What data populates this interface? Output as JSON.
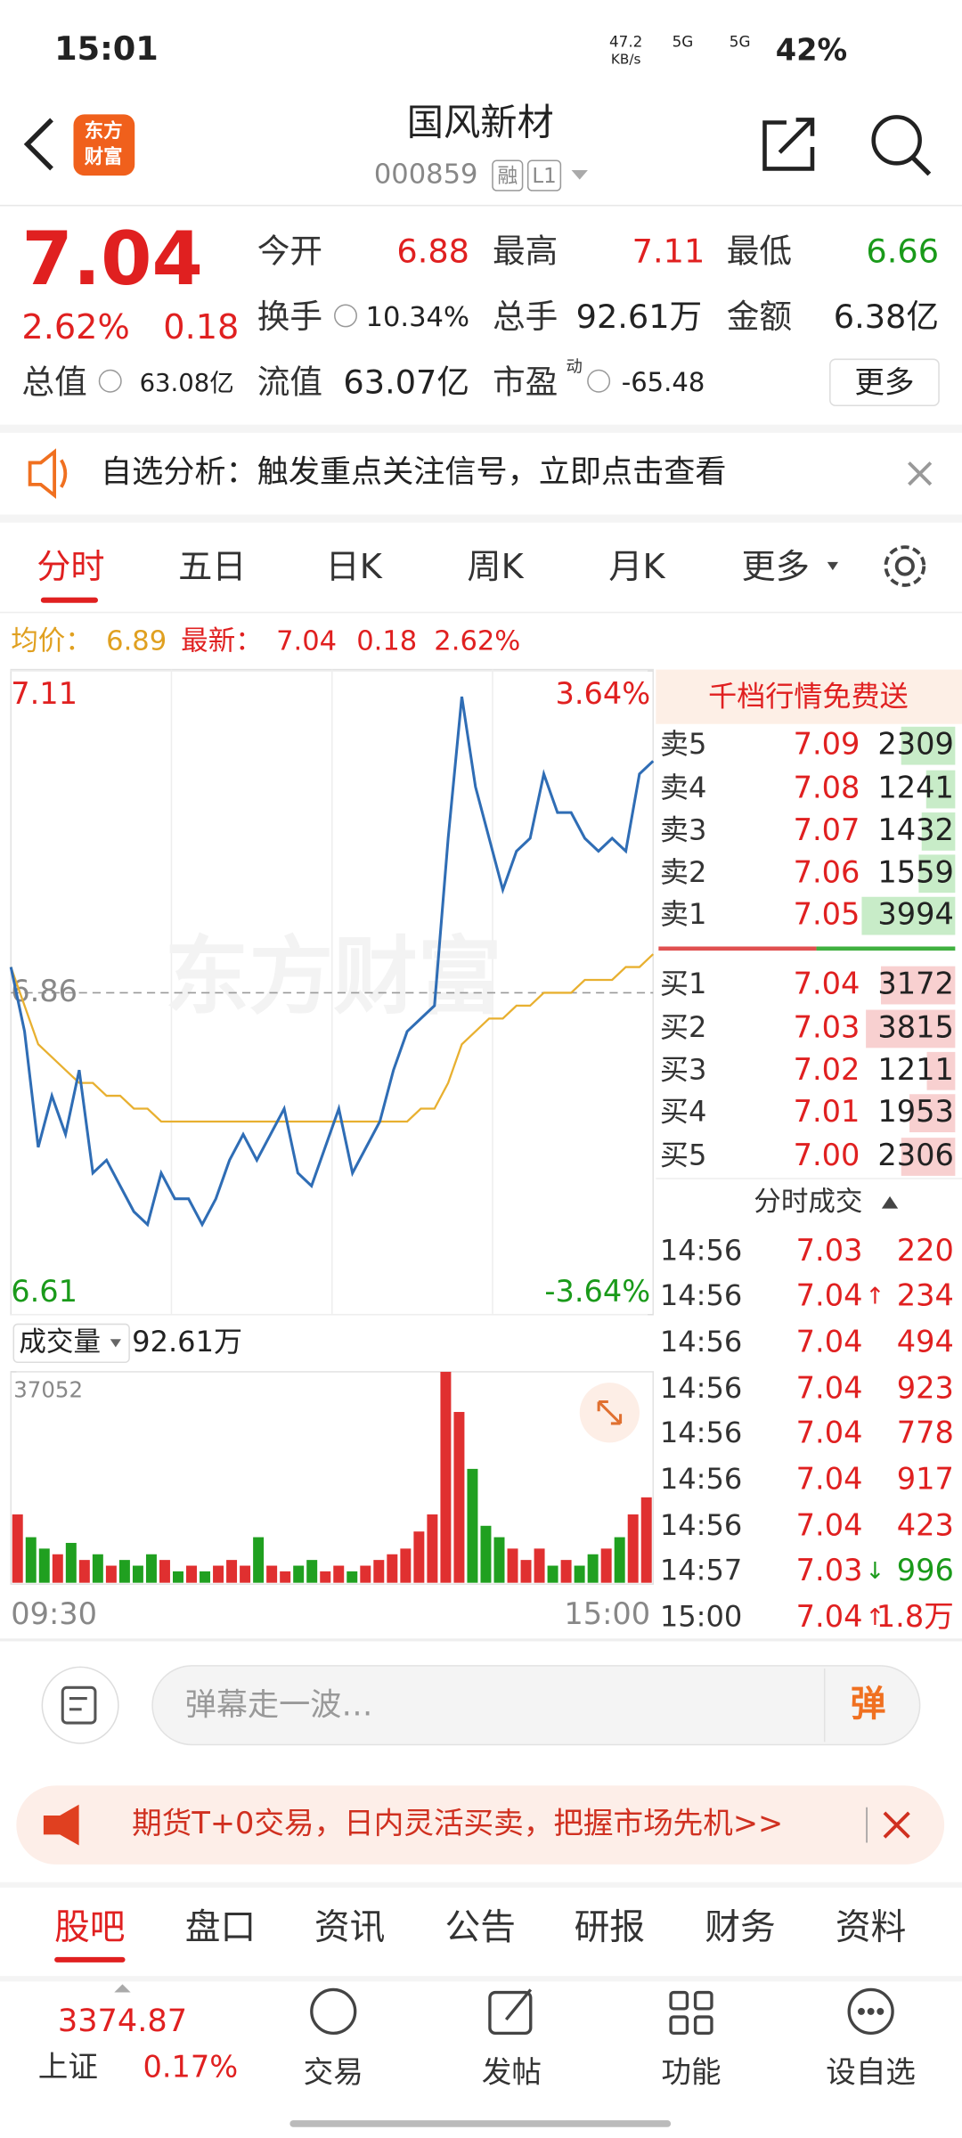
{
  "status_bar": {
    "time": "15:01",
    "speed": "47.2",
    "speed_unit": "KB/s",
    "net1": "5G",
    "net2": "5G",
    "battery": "42%"
  },
  "header": {
    "logo": [
      "东方",
      "财富"
    ],
    "name": "国风新材",
    "code": "000859",
    "tags": [
      "融",
      "L1"
    ]
  },
  "quote": {
    "price": "7.04",
    "change_pct": "2.62%",
    "change": "0.18",
    "fields": [
      {
        "label": "今开",
        "value": "6.88"
      },
      {
        "label": "最高",
        "value": "7.11"
      },
      {
        "label": "最低",
        "value": "6.66"
      },
      {
        "label": "换手",
        "value": "10.34%"
      },
      {
        "label": "总手",
        "value": "92.61万"
      },
      {
        "label": "金额",
        "value": "6.38亿"
      },
      {
        "label": "总值",
        "value": "63.08亿"
      },
      {
        "label": "流值",
        "value": "63.07亿"
      },
      {
        "label": "市盈",
        "sup": "动",
        "value": "-65.48"
      }
    ],
    "more": "更多"
  },
  "notice": {
    "text": "自选分析：触发重点关注信号，立即点击查看"
  },
  "period_tabs": [
    "分时",
    "五日",
    "日K",
    "周K",
    "月K",
    "更多"
  ],
  "summary": {
    "avg_label": "均价：",
    "avg": "6.89",
    "last_label": "最新：",
    "last": "7.04",
    "change": "0.18",
    "change_pct": "2.62%"
  },
  "chart_data": [
    {
      "type": "line",
      "watermark": "东方财富",
      "categories": [
        "09:30",
        null,
        null,
        null,
        null,
        null,
        null,
        null,
        null,
        null,
        null,
        null,
        null,
        null,
        null,
        null,
        null,
        null,
        null,
        null,
        null,
        null,
        null,
        null,
        null,
        null,
        null,
        null,
        null,
        null,
        null,
        null,
        null,
        null,
        null,
        null,
        null,
        null,
        null,
        null,
        null,
        null,
        null,
        null,
        null,
        null,
        null,
        "15:00"
      ],
      "series": [
        {
          "color": "#2f6db5",
          "values": [
            6.88,
            6.83,
            6.74,
            6.78,
            6.75,
            6.8,
            6.72,
            6.73,
            6.71,
            6.69,
            6.68,
            6.72,
            6.7,
            6.7,
            6.68,
            6.7,
            6.73,
            6.75,
            6.73,
            6.75,
            6.77,
            6.72,
            6.71,
            6.74,
            6.77,
            6.72,
            6.74,
            6.76,
            6.8,
            6.83,
            6.84,
            6.85,
            6.98,
            7.09,
            7.02,
            6.98,
            6.94,
            6.97,
            6.98,
            7.03,
            7.0,
            7.0,
            6.98,
            6.97,
            6.98,
            6.97,
            7.03,
            7.04
          ]
        },
        {
          "color": "#e8b030",
          "values": [
            6.88,
            6.85,
            6.82,
            6.81,
            6.8,
            6.79,
            6.79,
            6.78,
            6.78,
            6.77,
            6.77,
            6.76,
            6.76,
            6.76,
            6.76,
            6.76,
            6.76,
            6.76,
            6.76,
            6.76,
            6.76,
            6.76,
            6.76,
            6.76,
            6.76,
            6.76,
            6.76,
            6.76,
            6.76,
            6.76,
            6.77,
            6.77,
            6.79,
            6.82,
            6.83,
            6.84,
            6.84,
            6.85,
            6.85,
            6.86,
            6.86,
            6.86,
            6.87,
            6.87,
            6.87,
            6.88,
            6.88,
            6.89
          ]
        }
      ],
      "ylim": [
        6.61,
        7.11
      ],
      "yticks": [
        6.61,
        6.86,
        7.11
      ],
      "y2lim": [
        -3.64,
        3.64
      ],
      "y2ticks": [
        {
          "value": -3.64,
          "label": "-3.64%"
        },
        {
          "value": 3.64,
          "label": "3.64%"
        }
      ]
    },
    {
      "type": "bar",
      "title": "成交量",
      "total": "92.61万",
      "categories": [
        "09:30",
        null,
        null,
        null,
        null,
        null,
        null,
        null,
        null,
        null,
        null,
        null,
        null,
        null,
        null,
        null,
        null,
        null,
        null,
        null,
        null,
        null,
        null,
        null,
        null,
        null,
        null,
        null,
        null,
        null,
        null,
        null,
        null,
        null,
        null,
        null,
        null,
        null,
        null,
        null,
        null,
        null,
        null,
        null,
        null,
        null,
        null,
        "15:00"
      ],
      "values": [
        12000,
        8000,
        6000,
        5000,
        7000,
        4000,
        5000,
        3000,
        4000,
        3000,
        5000,
        4000,
        2000,
        3000,
        2000,
        3000,
        4000,
        3000,
        8000,
        3000,
        2000,
        3000,
        4000,
        2000,
        3000,
        2000,
        3000,
        4000,
        5000,
        6000,
        9000,
        12000,
        37052,
        30000,
        20000,
        10000,
        8000,
        6000,
        4000,
        6000,
        3000,
        4000,
        3000,
        5000,
        6000,
        8000,
        12000,
        15000
      ],
      "ylim": [
        0,
        37052
      ],
      "yticks": [
        37052
      ]
    }
  ],
  "order_book": {
    "banner": "千档行情免费送",
    "asks": [
      {
        "label": "卖5",
        "price": "7.09",
        "volume": 2309
      },
      {
        "label": "卖4",
        "price": "7.08",
        "volume": 1241
      },
      {
        "label": "卖3",
        "price": "7.07",
        "volume": 1432
      },
      {
        "label": "卖2",
        "price": "7.06",
        "volume": 1559
      },
      {
        "label": "卖1",
        "price": "7.05",
        "volume": 3994
      }
    ],
    "bids": [
      {
        "label": "买1",
        "price": "7.04",
        "volume": 3172
      },
      {
        "label": "买2",
        "price": "7.03",
        "volume": 3815
      },
      {
        "label": "买3",
        "price": "7.02",
        "volume": 1211
      },
      {
        "label": "买4",
        "price": "7.01",
        "volume": 1953
      },
      {
        "label": "买5",
        "price": "7.00",
        "volume": 2306
      }
    ]
  },
  "trades": {
    "title": "分时成交",
    "rows": [
      {
        "time": "14:56",
        "price": "7.03",
        "volume": "220"
      },
      {
        "time": "14:56",
        "price": "7.04",
        "arrow": "↑",
        "volume": "234"
      },
      {
        "time": "14:56",
        "price": "7.04",
        "volume": "494"
      },
      {
        "time": "14:56",
        "price": "7.04",
        "volume": "923"
      },
      {
        "time": "14:56",
        "price": "7.04",
        "volume": "778"
      },
      {
        "time": "14:56",
        "price": "7.04",
        "volume": "917"
      },
      {
        "time": "14:56",
        "price": "7.04",
        "volume": "423"
      },
      {
        "time": "14:57",
        "price": "7.03",
        "arrow": "↓",
        "volume": "996"
      },
      {
        "time": "15:00",
        "price": "7.04",
        "arrow": "↑",
        "volume": "1.8万"
      }
    ]
  },
  "danmu": {
    "placeholder": "弹幕走一波…",
    "button": "弹"
  },
  "ad": {
    "text": "期货T+0交易，日内灵活买卖，把握市场先机>>"
  },
  "bottom_tabs": [
    "股吧",
    "盘口",
    "资讯",
    "公告",
    "研报",
    "财务",
    "资料"
  ],
  "bottom_nav": {
    "index_value": "3374.87",
    "index_name": "上证",
    "index_pct": "0.17%",
    "items": [
      "交易",
      "发帖",
      "功能",
      "设自选"
    ]
  }
}
